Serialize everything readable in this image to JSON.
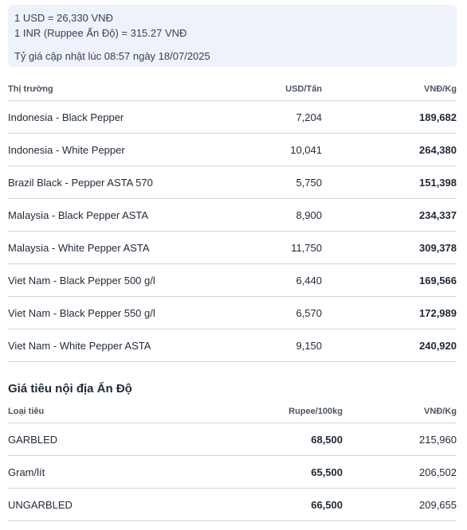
{
  "exchange": {
    "usd_rate": "1 USD = 26,330 VNĐ",
    "inr_rate": "1 INR (Ruppee Ấn Độ) = 315.27 VNĐ",
    "updated": "Tỷ giá cập nhật lúc 08:57 ngày 18/07/2025"
  },
  "market_table": {
    "headers": [
      "Thị trường",
      "USD/Tấn",
      "VNĐ/Kg"
    ],
    "rows": [
      [
        "Indonesia - Black Pepper",
        "7,204",
        "189,682"
      ],
      [
        "Indonesia - White Pepper",
        "10,041",
        "264,380"
      ],
      [
        "Brazil Black - Pepper ASTA 570",
        "5,750",
        "151,398"
      ],
      [
        "Malaysia - Black Pepper ASTA",
        "8,900",
        "234,337"
      ],
      [
        "Malaysia - White Pepper ASTA",
        "11,750",
        "309,378"
      ],
      [
        "Viet Nam - Black Pepper 500 g/l",
        "6,440",
        "169,566"
      ],
      [
        "Viet Nam - Black Pepper 550 g/l",
        "6,570",
        "172,989"
      ],
      [
        "Viet Nam - White Pepper ASTA",
        "9,150",
        "240,920"
      ]
    ]
  },
  "india": {
    "title": "Giá tiêu nội địa Ấn Độ",
    "headers": [
      "Loại tiêu",
      "Rupee/100kg",
      "VNĐ/Kg"
    ],
    "rows": [
      [
        "GARBLED",
        "68,500",
        "215,960"
      ],
      [
        "Gram/lít",
        "65,500",
        "206,502"
      ],
      [
        "UNGARBLED",
        "66,500",
        "209,655"
      ]
    ]
  }
}
